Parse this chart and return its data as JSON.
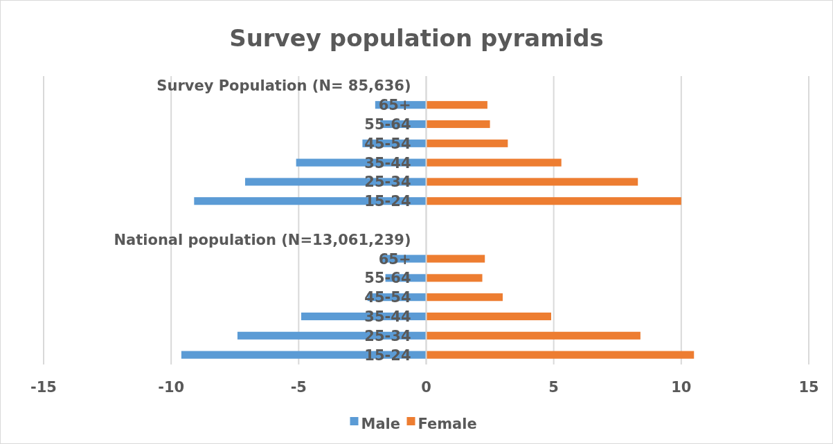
{
  "chart_data": {
    "type": "bar",
    "orientation": "horizontal",
    "stacked": true,
    "title": "Survey population pyramids",
    "categories": [
      "Survey Population (N= 85,636)",
      "65+",
      "55-64",
      "45-54",
      "35-44",
      "25-34",
      "15-24",
      null,
      "National population (N=13,061,239)",
      "65+",
      "55-64",
      "45-54",
      "35-44",
      "25-34",
      "15-24"
    ],
    "series": [
      {
        "name": "Male",
        "color": "#5b9bd5",
        "values": [
          null,
          -2.0,
          -1.8,
          -2.5,
          -5.1,
          -7.1,
          -9.1,
          null,
          null,
          -1.8,
          -1.6,
          -2.3,
          -4.9,
          -7.4,
          -9.6
        ]
      },
      {
        "name": "Female",
        "color": "#ed7d31",
        "values": [
          null,
          2.4,
          2.5,
          3.2,
          5.3,
          8.3,
          10.0,
          null,
          null,
          2.3,
          2.2,
          3.0,
          4.9,
          8.4,
          10.5
        ]
      }
    ],
    "xlim": [
      -15,
      15
    ],
    "xticks": [
      -15,
      -10,
      -5,
      0,
      5,
      10,
      15
    ],
    "grid": "x",
    "legend": "bottom"
  }
}
